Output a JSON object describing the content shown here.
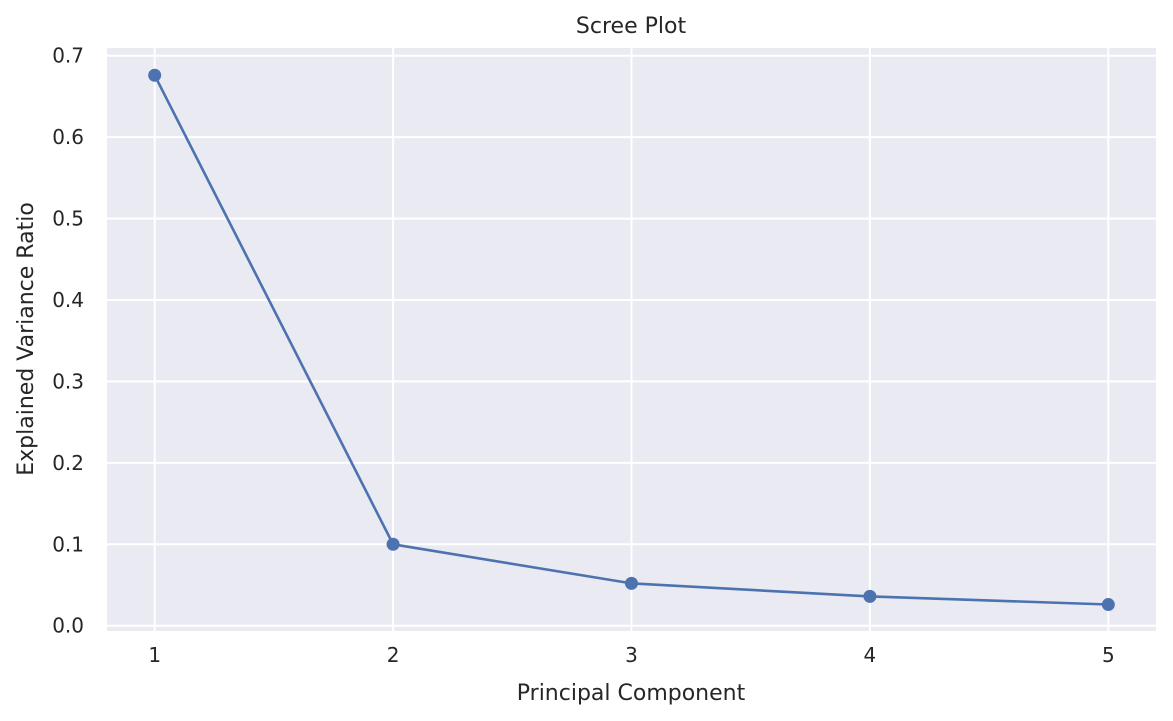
{
  "chart_data": {
    "type": "line",
    "title": "Scree Plot",
    "xlabel": "Principal Component",
    "ylabel": "Explained Variance Ratio",
    "x": [
      1,
      2,
      3,
      4,
      5
    ],
    "series": [
      {
        "values": [
          0.676,
          0.1,
          0.052,
          0.036,
          0.026
        ],
        "color": "#4c72b0",
        "marker": "circle"
      }
    ],
    "xticks": [
      "1",
      "2",
      "3",
      "4",
      "5"
    ],
    "yticks": [
      "0.0",
      "0.1",
      "0.2",
      "0.3",
      "0.4",
      "0.5",
      "0.6",
      "0.7"
    ],
    "xlim": [
      0.8,
      5.2
    ],
    "ylim": [
      -0.0065,
      0.7095
    ],
    "grid": true,
    "background": "#eaeaf2",
    "grid_color": "#ffffff"
  }
}
